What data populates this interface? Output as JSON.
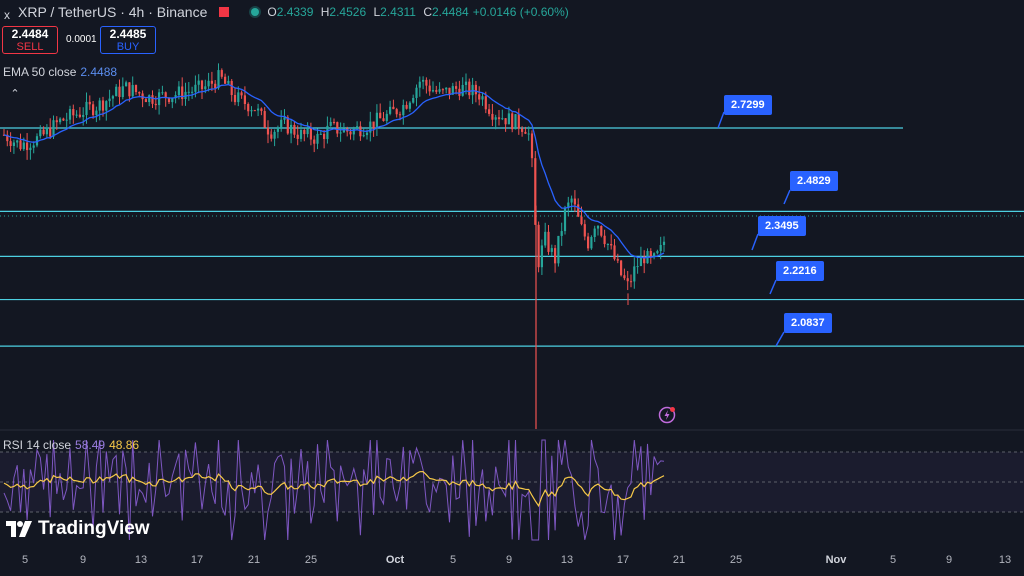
{
  "header": {
    "close_icon": "x",
    "symbol": "XRP / TetherUS · 4h · Binance",
    "ohlc": {
      "o_label": "O",
      "o": "2.4339",
      "h_label": "H",
      "h": "2.4526",
      "l_label": "L",
      "l": "2.4311",
      "c_label": "C",
      "c": "2.4484"
    },
    "change": "+0.0146 (+0.60%)"
  },
  "trade": {
    "sell_price": "2.4484",
    "sell_label": "SELL",
    "spread": "0.0001",
    "buy_price": "2.4485",
    "buy_label": "BUY"
  },
  "indicators": {
    "ema_label": "EMA 50 close",
    "ema_value": "2.4488",
    "collapse_icon": "chevron-up",
    "rsi_label": "RSI 14 close",
    "rsi_value": "58.49",
    "rsi_ma_value": "48.86"
  },
  "levels": [
    {
      "label": "2.7299",
      "price": 2.7299
    },
    {
      "label": "2.4829",
      "price": 2.4829
    },
    {
      "label": "2.3495",
      "price": 2.3495
    },
    {
      "label": "2.2216",
      "price": 2.2216
    },
    {
      "label": "2.0837",
      "price": 2.0837
    }
  ],
  "x_axis": [
    "5",
    "9",
    "13",
    "17",
    "21",
    "25",
    "Oct",
    "5",
    "9",
    "13",
    "17",
    "21",
    "25",
    "Nov",
    "5",
    "9",
    "13"
  ],
  "logo_text": "TradingView",
  "colors": {
    "background": "#131722",
    "up": "#26a69a",
    "down": "#ef5350",
    "ema": "#2962ff",
    "level": "#4dd0e1",
    "tag": "#2962ff",
    "rsi": "#7e57c2",
    "rsi_ma": "#f7c948"
  },
  "chart_data": {
    "type": "candlestick",
    "title": "XRP / TetherUS · 4h · Binance",
    "ema50_last": 2.4488,
    "last_close": 2.4484,
    "horizontal_levels": [
      2.7299,
      2.4829,
      2.3495,
      2.2216,
      2.0837
    ],
    "rsi14_last": 58.49,
    "rsi_ma_last": 48.86,
    "x_ticks": [
      "5",
      "9",
      "13",
      "17",
      "21",
      "25",
      "Oct",
      "5",
      "9",
      "13",
      "17",
      "21",
      "25",
      "Nov",
      "5",
      "9",
      "13"
    ]
  }
}
